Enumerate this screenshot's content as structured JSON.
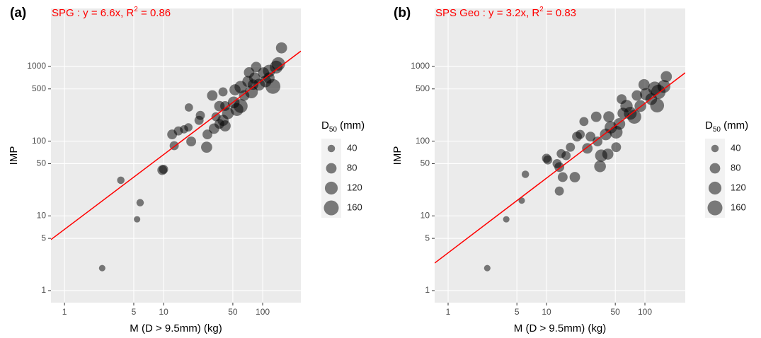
{
  "chart_data": [
    {
      "type": "scatter",
      "panel_label": "(a)",
      "annotation": {
        "text": "SPG :  y = 6.6x, R",
        "sup": "2",
        "rest": " = 0.86"
      },
      "fit_slope": 6.6,
      "fit_color": "#ff0000",
      "x_label": "M (D > 9.5mm) (kg)",
      "y_label": "IMP",
      "log_x": true,
      "log_y": true,
      "grid": true,
      "color": "#000000",
      "xlim": [
        0.73,
        243
      ],
      "ylim": [
        0.69,
        5960
      ],
      "xticks": [
        1,
        5,
        10,
        50,
        100
      ],
      "yticks": [
        1,
        5,
        10,
        50,
        100,
        500,
        1000
      ],
      "x": [
        2.4,
        3.7,
        5.4,
        5.8,
        9.7,
        10,
        12.2,
        12.8,
        14.1,
        16.1,
        17.8,
        18,
        23.5,
        22.8,
        19,
        27.2,
        27.7,
        32.3,
        31,
        36.6,
        39.8,
        41.8,
        44.6,
        41.8,
        39.8,
        51,
        55,
        60,
        52.6,
        60,
        65,
        71,
        77,
        73,
        83,
        86,
        92,
        102,
        107,
        116,
        127,
        137,
        144,
        155,
        116,
        80,
        36.6,
        33.8
      ],
      "y": [
        2,
        30,
        9,
        15,
        41,
        42,
        123,
        87,
        137,
        144,
        153,
        282,
        221,
        190,
        99,
        83,
        123,
        147,
        408,
        294,
        190,
        160,
        236,
        295,
        456,
        330,
        265,
        295,
        487,
        530,
        408,
        630,
        456,
        830,
        700,
        980,
        570,
        820,
        630,
        870,
        540,
        980,
        1080,
        1770,
        700,
        570,
        170,
        212
      ],
      "sizes": [
        30,
        40,
        30,
        40,
        70,
        60,
        70,
        60,
        60,
        50,
        50,
        50,
        60,
        60,
        70,
        90,
        70,
        80,
        80,
        80,
        90,
        90,
        100,
        70,
        60,
        100,
        120,
        140,
        90,
        110,
        80,
        90,
        120,
        80,
        90,
        80,
        100,
        90,
        100,
        110,
        160,
        120,
        130,
        90,
        90,
        80,
        70,
        60
      ],
      "size_legend": {
        "title": "D",
        "title_sub": "50",
        "title_rest": " (mm)",
        "values": [
          40,
          80,
          120,
          160
        ]
      }
    },
    {
      "type": "scatter",
      "panel_label": "(b)",
      "annotation": {
        "text": "SPS Geo :  y = 3.2x, R",
        "sup": "2",
        "rest": " = 0.83"
      },
      "fit_slope": 3.2,
      "fit_color": "#ff0000",
      "x_label": "M (D > 9.5mm) (kg)",
      "y_label": "IMP",
      "log_x": true,
      "log_y": true,
      "grid": true,
      "color": "#000000",
      "xlim": [
        0.73,
        257
      ],
      "ylim": [
        0.69,
        5960
      ],
      "xticks": [
        1,
        5,
        10,
        50,
        100
      ],
      "yticks": [
        1,
        5,
        10,
        50,
        100,
        500,
        1000
      ],
      "x": [
        2.5,
        3.9,
        5.6,
        6.1,
        10,
        10.3,
        12.8,
        13.5,
        14.1,
        13.5,
        14.6,
        15.8,
        17.5,
        19.4,
        20.4,
        22,
        24,
        26,
        28,
        32,
        35,
        36,
        42,
        40,
        43,
        45,
        51,
        55,
        60,
        65,
        58,
        71,
        78,
        83,
        90,
        98,
        103,
        116,
        126,
        137,
        156,
        165,
        133,
        51,
        33
      ],
      "y": [
        2,
        9,
        16,
        36,
        59,
        56,
        50,
        45,
        68,
        21.5,
        33,
        64,
        83,
        33,
        115,
        123,
        183,
        80,
        115,
        212,
        46,
        64,
        67,
        123,
        212,
        153,
        132,
        170,
        236,
        295,
        365,
        236,
        212,
        408,
        295,
        570,
        425,
        365,
        510,
        456,
        540,
        730,
        300,
        83,
        99
      ],
      "sizes": [
        30,
        30,
        30,
        40,
        60,
        60,
        60,
        70,
        60,
        60,
        70,
        60,
        60,
        80,
        70,
        60,
        60,
        80,
        70,
        80,
        100,
        110,
        90,
        100,
        90,
        110,
        120,
        100,
        90,
        110,
        70,
        120,
        140,
        80,
        100,
        90,
        110,
        100,
        130,
        150,
        120,
        90,
        140,
        70,
        70
      ],
      "size_legend": {
        "title": "D",
        "title_sub": "50",
        "title_rest": " (mm)",
        "values": [
          40,
          80,
          120,
          160
        ]
      }
    }
  ]
}
